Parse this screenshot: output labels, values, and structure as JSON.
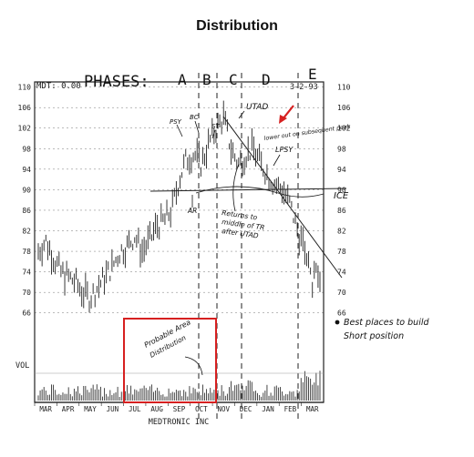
{
  "title": "Distribution",
  "header": {
    "mdt": "MDT: 0.00",
    "phases_label": "PHASES:",
    "date": "3-2-93",
    "phases": [
      "A",
      "B",
      "C",
      "D",
      "E"
    ]
  },
  "footer": {
    "company": "MEDTRONIC INC",
    "vol_label": "VOL"
  },
  "chart_data": {
    "type": "bar",
    "subtype": "daily high-low price bars with volume",
    "xlabel": "",
    "ylabel": "",
    "x_ticks": [
      "MAR",
      "APR",
      "MAY",
      "JUN",
      "JUL",
      "AUG",
      "SEP",
      "OCT",
      "NOV",
      "DEC",
      "JAN",
      "FEB",
      "MAR"
    ],
    "y_ticks_left": [
      "110",
      "106",
      "102",
      "98",
      "94",
      "90",
      "86",
      "82",
      "78",
      "74",
      "70",
      "66"
    ],
    "y_ticks_right": [
      "110",
      "106",
      "102",
      "98",
      "94",
      "90",
      "86",
      "82",
      "78",
      "74",
      "70",
      "66"
    ],
    "ylim": [
      64,
      111
    ],
    "grid": true,
    "series": [
      {
        "points": [
          [
            "MAR",
            78
          ],
          [
            "MAR",
            80
          ],
          [
            "APR",
            77
          ],
          [
            "APR",
            74
          ],
          [
            "APR",
            73
          ],
          [
            "MAY",
            72
          ],
          [
            "MAY",
            70
          ],
          [
            "MAY",
            69
          ],
          [
            "MAY",
            71
          ],
          [
            "JUN",
            73
          ],
          [
            "JUN",
            75
          ],
          [
            "JUN",
            78
          ],
          [
            "JUL",
            79
          ],
          [
            "JUL",
            81
          ],
          [
            "JUL",
            78
          ],
          [
            "AUG",
            80
          ],
          [
            "AUG",
            83
          ],
          [
            "AUG",
            84
          ],
          [
            "SEP",
            86
          ],
          [
            "SEP",
            92
          ],
          [
            "SEP",
            96
          ],
          [
            "SEP",
            97
          ],
          [
            "OCT",
            95
          ],
          [
            "OCT",
            99
          ],
          [
            "OCT",
            102
          ],
          [
            "NOV",
            104
          ],
          [
            "NOV",
            98
          ],
          [
            "NOV",
            95
          ],
          [
            "DEC",
            97
          ],
          [
            "DEC",
            98
          ],
          [
            "DEC",
            95
          ],
          [
            "JAN",
            93
          ],
          [
            "JAN",
            91
          ],
          [
            "JAN",
            90
          ],
          [
            "FEB",
            87
          ],
          [
            "FEB",
            82
          ],
          [
            "FEB",
            78
          ],
          [
            "MAR",
            72
          ],
          [
            "MAR",
            74
          ]
        ]
      }
    ]
  },
  "annotations": {
    "phase_events": [
      "PSY",
      "BC",
      "ST",
      "AR",
      "UTAD",
      "LPSY",
      "ICE"
    ],
    "lower_out": "lower out on subsequent peak",
    "returns_1": "Returns to",
    "returns_2": "middle of TR",
    "returns_3": "after UTAD",
    "probable": "Probable Area",
    "distribution": "Distribution",
    "best_1": "Best places to build",
    "best_2": "Short position"
  },
  "colors": {
    "highlight_box": "#d62020",
    "arrow": "#d62020"
  }
}
